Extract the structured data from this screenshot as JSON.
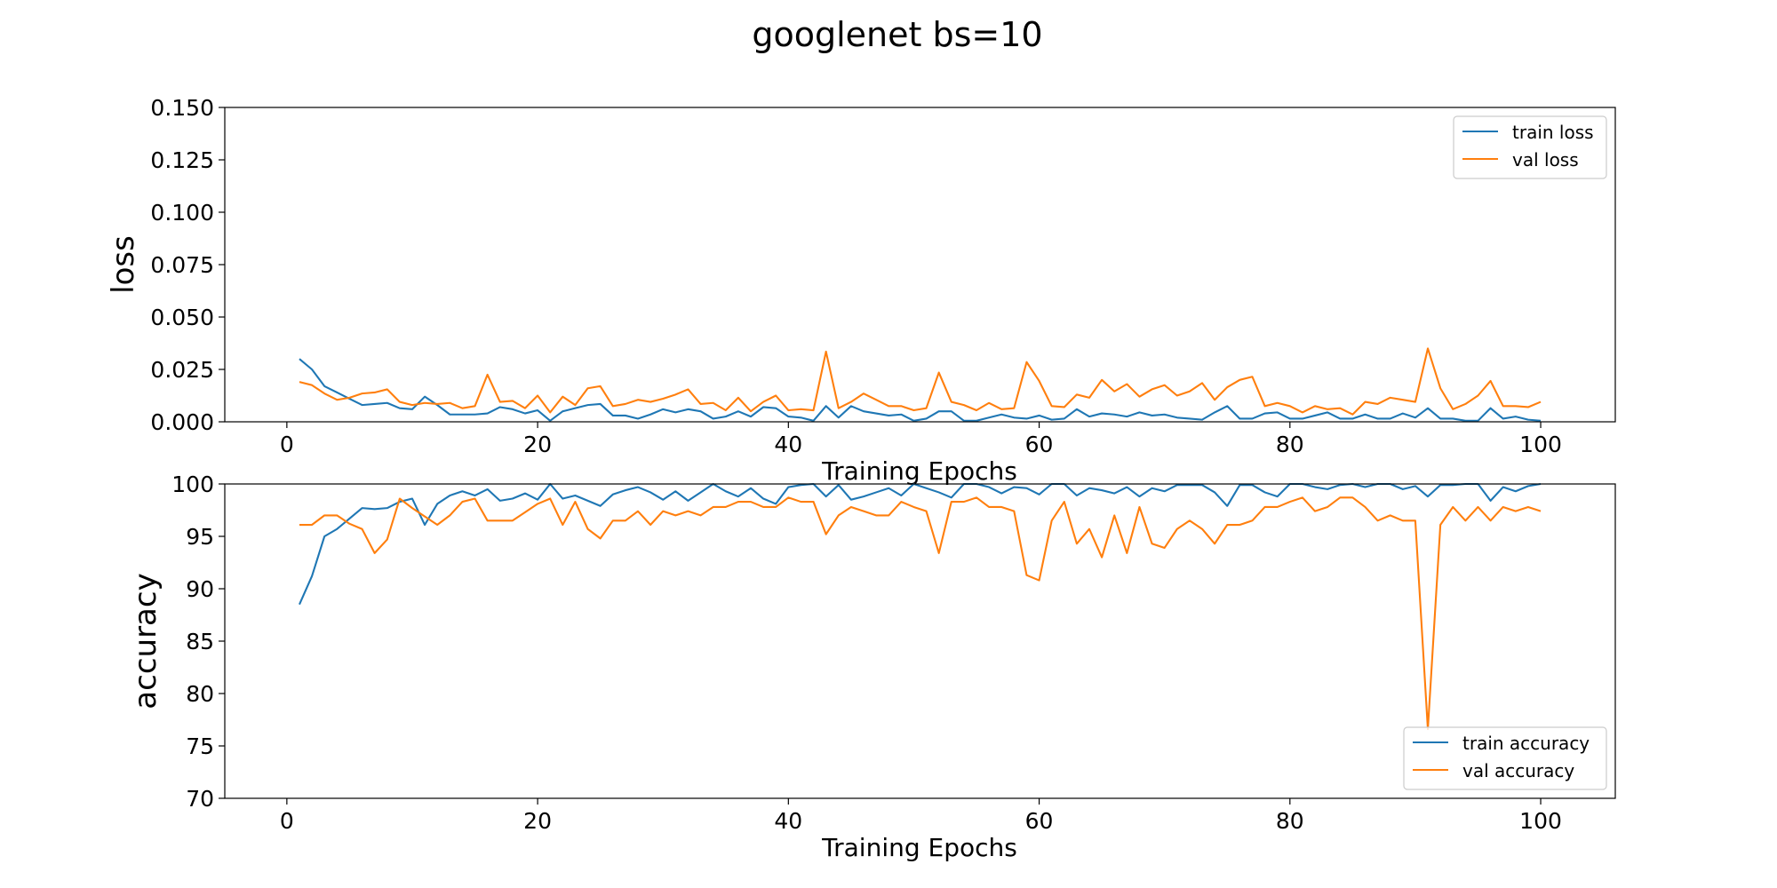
{
  "figure": {
    "title": "googlenet bs=10"
  },
  "colors": {
    "train": "#1f77b4",
    "val": "#ff7f0e"
  },
  "chart_data": [
    {
      "type": "line",
      "xlabel": "Training Epochs",
      "ylabel": "loss",
      "xlim": [
        -4.95,
        105.95
      ],
      "ylim": [
        0,
        0.15
      ],
      "x_ticks": [
        0,
        20,
        40,
        60,
        80,
        100
      ],
      "x_tick_labels": [
        "0",
        "20",
        "40",
        "60",
        "80",
        "100"
      ],
      "y_ticks": [
        0,
        0.025,
        0.05,
        0.075,
        0.1,
        0.125,
        0.15
      ],
      "y_tick_labels": [
        "0.000",
        "0.025",
        "0.050",
        "0.075",
        "0.100",
        "0.125",
        "0.150"
      ],
      "legend_position": "upper right",
      "x": [
        1,
        2,
        3,
        4,
        5,
        6,
        7,
        8,
        9,
        10,
        11,
        12,
        13,
        14,
        15,
        16,
        17,
        18,
        19,
        20,
        21,
        22,
        23,
        24,
        25,
        26,
        27,
        28,
        29,
        30,
        31,
        32,
        33,
        34,
        35,
        36,
        37,
        38,
        39,
        40,
        41,
        42,
        43,
        44,
        45,
        46,
        47,
        48,
        49,
        50,
        51,
        52,
        53,
        54,
        55,
        56,
        57,
        58,
        59,
        60,
        61,
        62,
        63,
        64,
        65,
        66,
        67,
        68,
        69,
        70,
        71,
        72,
        73,
        74,
        75,
        76,
        77,
        78,
        79,
        80,
        81,
        82,
        83,
        84,
        85,
        86,
        87,
        88,
        89,
        90,
        91,
        92,
        93,
        94,
        95,
        96,
        97,
        98,
        99,
        100
      ],
      "series": [
        {
          "name": "train loss",
          "color": "#1f77b4",
          "values": [
            0.03,
            0.025,
            0.017,
            0.014,
            0.011,
            0.008,
            0.0085,
            0.009,
            0.0065,
            0.006,
            0.012,
            0.008,
            0.0035,
            0.0035,
            0.0035,
            0.004,
            0.007,
            0.006,
            0.004,
            0.0055,
            0.0005,
            0.005,
            0.0065,
            0.008,
            0.0085,
            0.003,
            0.003,
            0.0015,
            0.0035,
            0.006,
            0.0045,
            0.006,
            0.005,
            0.0015,
            0.0025,
            0.005,
            0.0025,
            0.007,
            0.0065,
            0.0025,
            0.002,
            0.0005,
            0.0075,
            0.002,
            0.0075,
            0.005,
            0.004,
            0.003,
            0.0035,
            0.0005,
            0.0015,
            0.005,
            0.005,
            0.0005,
            0.0005,
            0.002,
            0.0035,
            0.002,
            0.0015,
            0.003,
            0.001,
            0.0015,
            0.006,
            0.0025,
            0.004,
            0.0035,
            0.0025,
            0.0045,
            0.003,
            0.0035,
            0.002,
            0.0015,
            0.001,
            0.0045,
            0.0075,
            0.0015,
            0.0015,
            0.004,
            0.0045,
            0.0015,
            0.0015,
            0.003,
            0.0045,
            0.0015,
            0.0015,
            0.0035,
            0.0015,
            0.0015,
            0.004,
            0.002,
            0.0065,
            0.0015,
            0.0015,
            0.0005,
            0.0005,
            0.0065,
            0.0015,
            0.0025,
            0.001,
            0.0005
          ]
        },
        {
          "name": "val loss",
          "color": "#ff7f0e",
          "values": [
            0.019,
            0.0175,
            0.0135,
            0.0105,
            0.0115,
            0.0135,
            0.014,
            0.0155,
            0.0095,
            0.008,
            0.009,
            0.0085,
            0.009,
            0.0065,
            0.0075,
            0.0225,
            0.0095,
            0.01,
            0.0065,
            0.0125,
            0.0045,
            0.012,
            0.008,
            0.016,
            0.017,
            0.0075,
            0.0085,
            0.0105,
            0.0095,
            0.011,
            0.013,
            0.0155,
            0.0085,
            0.009,
            0.0055,
            0.0115,
            0.005,
            0.0095,
            0.0125,
            0.0055,
            0.006,
            0.0055,
            0.0335,
            0.0065,
            0.0095,
            0.0135,
            0.0105,
            0.0075,
            0.0075,
            0.0055,
            0.0065,
            0.0235,
            0.0095,
            0.008,
            0.0055,
            0.009,
            0.006,
            0.0065,
            0.0285,
            0.0195,
            0.0075,
            0.007,
            0.013,
            0.0115,
            0.02,
            0.0145,
            0.018,
            0.012,
            0.0155,
            0.0175,
            0.0125,
            0.0145,
            0.0185,
            0.0105,
            0.0165,
            0.02,
            0.0215,
            0.0075,
            0.009,
            0.0075,
            0.0045,
            0.0075,
            0.006,
            0.0065,
            0.0035,
            0.0095,
            0.0085,
            0.0115,
            0.0105,
            0.0095,
            0.035,
            0.016,
            0.006,
            0.0085,
            0.0125,
            0.0195,
            0.0075,
            0.0075,
            0.007,
            0.0095
          ]
        }
      ]
    },
    {
      "type": "line",
      "xlabel": "Training Epochs",
      "ylabel": "accuracy",
      "xlim": [
        -4.95,
        105.95
      ],
      "ylim": [
        70,
        100
      ],
      "x_ticks": [
        0,
        20,
        40,
        60,
        80,
        100
      ],
      "x_tick_labels": [
        "0",
        "20",
        "40",
        "60",
        "80",
        "100"
      ],
      "y_ticks": [
        70,
        75,
        80,
        85,
        90,
        95,
        100
      ],
      "y_tick_labels": [
        "70",
        "75",
        "80",
        "85",
        "90",
        "95",
        "100"
      ],
      "legend_position": "lower right",
      "x": [
        1,
        2,
        3,
        4,
        5,
        6,
        7,
        8,
        9,
        10,
        11,
        12,
        13,
        14,
        15,
        16,
        17,
        18,
        19,
        20,
        21,
        22,
        23,
        24,
        25,
        26,
        27,
        28,
        29,
        30,
        31,
        32,
        33,
        34,
        35,
        36,
        37,
        38,
        39,
        40,
        41,
        42,
        43,
        44,
        45,
        46,
        47,
        48,
        49,
        50,
        51,
        52,
        53,
        54,
        55,
        56,
        57,
        58,
        59,
        60,
        61,
        62,
        63,
        64,
        65,
        66,
        67,
        68,
        69,
        70,
        71,
        72,
        73,
        74,
        75,
        76,
        77,
        78,
        79,
        80,
        81,
        82,
        83,
        84,
        85,
        86,
        87,
        88,
        89,
        90,
        91,
        92,
        93,
        94,
        95,
        96,
        97,
        98,
        99,
        100
      ],
      "series": [
        {
          "name": "train accuracy",
          "color": "#1f77b4",
          "values": [
            88.5,
            91.2,
            95.0,
            95.7,
            96.7,
            97.7,
            97.6,
            97.7,
            98.3,
            98.6,
            96.1,
            98.1,
            98.9,
            99.3,
            98.9,
            99.5,
            98.4,
            98.6,
            99.1,
            98.5,
            100.0,
            98.6,
            98.9,
            98.4,
            97.9,
            99.0,
            99.4,
            99.7,
            99.2,
            98.5,
            99.3,
            98.4,
            99.2,
            100.0,
            99.3,
            98.8,
            99.6,
            98.6,
            98.1,
            99.7,
            99.9,
            100.0,
            98.8,
            99.9,
            98.5,
            98.8,
            99.2,
            99.6,
            98.9,
            100.0,
            99.6,
            99.2,
            98.7,
            100.0,
            100.0,
            99.7,
            99.1,
            99.7,
            99.6,
            99.0,
            100.0,
            100.0,
            98.9,
            99.6,
            99.4,
            99.1,
            99.7,
            98.8,
            99.6,
            99.3,
            99.9,
            99.9,
            99.9,
            99.2,
            97.9,
            99.9,
            99.9,
            99.2,
            98.8,
            100.0,
            100.0,
            99.7,
            99.5,
            99.9,
            100.0,
            99.7,
            100.0,
            100.0,
            99.5,
            99.8,
            98.8,
            99.9,
            99.9,
            100.0,
            100.0,
            98.4,
            99.7,
            99.3,
            99.8,
            100.0
          ]
        },
        {
          "name": "val accuracy",
          "color": "#ff7f0e",
          "values": [
            96.1,
            96.1,
            97.0,
            97.0,
            96.2,
            95.7,
            93.4,
            94.7,
            98.6,
            97.7,
            96.9,
            96.1,
            97.0,
            98.3,
            98.6,
            96.5,
            96.5,
            96.5,
            97.3,
            98.1,
            98.6,
            96.1,
            98.3,
            95.7,
            94.8,
            96.5,
            96.5,
            97.4,
            96.1,
            97.4,
            97.0,
            97.4,
            97.0,
            97.8,
            97.8,
            98.3,
            98.3,
            97.8,
            97.8,
            98.7,
            98.3,
            98.3,
            95.2,
            97.0,
            97.8,
            97.4,
            97.0,
            97.0,
            98.3,
            97.8,
            97.4,
            93.4,
            98.3,
            98.3,
            98.7,
            97.8,
            97.8,
            97.4,
            91.3,
            90.8,
            96.5,
            98.3,
            94.3,
            95.7,
            93.0,
            97.0,
            93.4,
            97.8,
            94.3,
            93.9,
            95.7,
            96.5,
            95.7,
            94.3,
            96.1,
            96.1,
            96.5,
            97.8,
            97.8,
            98.3,
            98.7,
            97.4,
            97.8,
            98.7,
            98.7,
            97.8,
            96.5,
            97.0,
            96.5,
            96.5,
            76.6,
            96.1,
            97.8,
            96.5,
            97.8,
            96.5,
            97.8,
            97.4,
            97.8,
            97.4
          ]
        }
      ]
    }
  ]
}
